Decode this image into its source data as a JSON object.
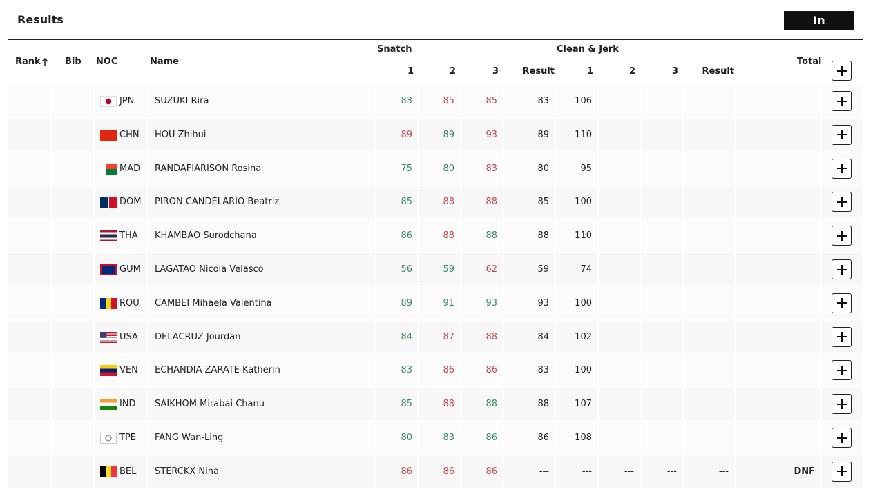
{
  "header": {
    "title": "Results",
    "status": "In Progress"
  },
  "table": {
    "columns": {
      "rank": "Rank",
      "bib": "Bib",
      "noc": "NOC",
      "name": "Name",
      "snatch": "Snatch",
      "snatch_attempts": [
        "1",
        "2",
        "3"
      ],
      "snatch_result": "Result",
      "cj": "Clean & Jerk",
      "cj_attempts": [
        "1",
        "2",
        "3"
      ],
      "cj_result": "Result",
      "total": "Total"
    },
    "rows": [
      {
        "noc": "JPN",
        "name": "SUZUKI Rira",
        "snatch": [
          {
            "value": 83,
            "color": "#3d8b5e"
          },
          {
            "value": 85,
            "color": "#c44a55"
          },
          {
            "value": 85,
            "color": "#c44a55"
          }
        ],
        "snatch_result": 83,
        "cj": [
          106
        ]
      },
      {
        "noc": "CHN",
        "name": "HOU Zhihui",
        "snatch": [
          {
            "value": 89,
            "color": "#c44a55"
          },
          {
            "value": 89,
            "color": "#3d8b5e"
          },
          {
            "value": 93,
            "color": "#c44a55"
          }
        ],
        "snatch_result": 89,
        "cj": [
          110
        ]
      },
      {
        "noc": "MAD",
        "name": "RANDAFIARISON Rosina",
        "snatch": [
          {
            "value": 75,
            "color": "#3d8b5e"
          },
          {
            "value": 80,
            "color": "#3d8b5e"
          },
          {
            "value": 83,
            "color": "#c44a55"
          }
        ],
        "snatch_result": 80,
        "cj": [
          95
        ]
      },
      {
        "noc": "DOM",
        "name": "PIRON CANDELARIO Beatriz",
        "snatch": [
          {
            "value": 85,
            "color": "#3d8b5e"
          },
          {
            "value": 88,
            "color": "#c44a55"
          },
          {
            "value": 88,
            "color": "#c44a55"
          }
        ],
        "snatch_result": 85,
        "cj": [
          100
        ]
      },
      {
        "noc": "THA",
        "name": "KHAMBAO Surodchana",
        "snatch": [
          {
            "value": 86,
            "color": "#3d8b5e"
          },
          {
            "value": 88,
            "color": "#c44a55"
          },
          {
            "value": 88,
            "color": "#3d8b5e"
          }
        ],
        "snatch_result": 88,
        "cj": [
          110
        ]
      },
      {
        "noc": "GUM",
        "name": "LAGATAO Nicola Velasco",
        "snatch": [
          {
            "value": 56,
            "color": "#3d8b5e"
          },
          {
            "value": 59,
            "color": "#3d8b5e"
          },
          {
            "value": 62,
            "color": "#c44a55"
          }
        ],
        "snatch_result": 59,
        "cj": [
          74
        ]
      },
      {
        "noc": "ROU",
        "name": "CAMBEI Mihaela Valentina",
        "snatch": [
          {
            "value": 89,
            "color": "#3d8b5e"
          },
          {
            "value": 91,
            "color": "#3d8b5e"
          },
          {
            "value": 93,
            "color": "#3d8b5e"
          }
        ],
        "snatch_result": 93,
        "cj": [
          100
        ]
      },
      {
        "noc": "USA",
        "name": "DELACRUZ Jourdan",
        "snatch": [
          {
            "value": 84,
            "color": "#3d8b5e"
          },
          {
            "value": 87,
            "color": "#c44a55"
          },
          {
            "value": 88,
            "color": "#c44a55"
          }
        ],
        "snatch_result": 84,
        "cj": [
          102
        ]
      },
      {
        "noc": "VEN",
        "name": "ECHANDIA ZARATE Katherin",
        "snatch": [
          {
            "value": 83,
            "color": "#3d8b5e"
          },
          {
            "value": 86,
            "color": "#c44a55"
          },
          {
            "value": 86,
            "color": "#c44a55"
          }
        ],
        "snatch_result": 83,
        "cj": [
          100
        ]
      },
      {
        "noc": "IND",
        "name": "SAIKHOM Mirabai Chanu",
        "snatch": [
          {
            "value": 85,
            "color": "#3d8b5e"
          },
          {
            "value": 88,
            "color": "#c44a55"
          },
          {
            "value": 88,
            "color": "#3d8b5e"
          }
        ],
        "snatch_result": 88,
        "cj": [
          107
        ]
      },
      {
        "noc": "TPE",
        "name": "FANG Wan-Ling",
        "snatch": [
          {
            "value": 80,
            "color": "#3d8b5e"
          },
          {
            "value": 83,
            "color": "#3d8b5e"
          },
          {
            "value": 86,
            "color": "#3d8b5e"
          }
        ],
        "snatch_result": 86,
        "cj": [
          108
        ]
      },
      {
        "noc": "BEL",
        "name": "STERCKX Nina",
        "snatch": [
          {
            "value": 86,
            "color": "#c44a55"
          },
          {
            "value": 86,
            "color": "#c44a55"
          },
          {
            "value": 86,
            "color": "#c44a55"
          }
        ],
        "snatch_result": "---",
        "cj": [
          "---",
          "---",
          "---"
        ],
        "cj_result": "---",
        "total": "DNF"
      }
    ]
  }
}
